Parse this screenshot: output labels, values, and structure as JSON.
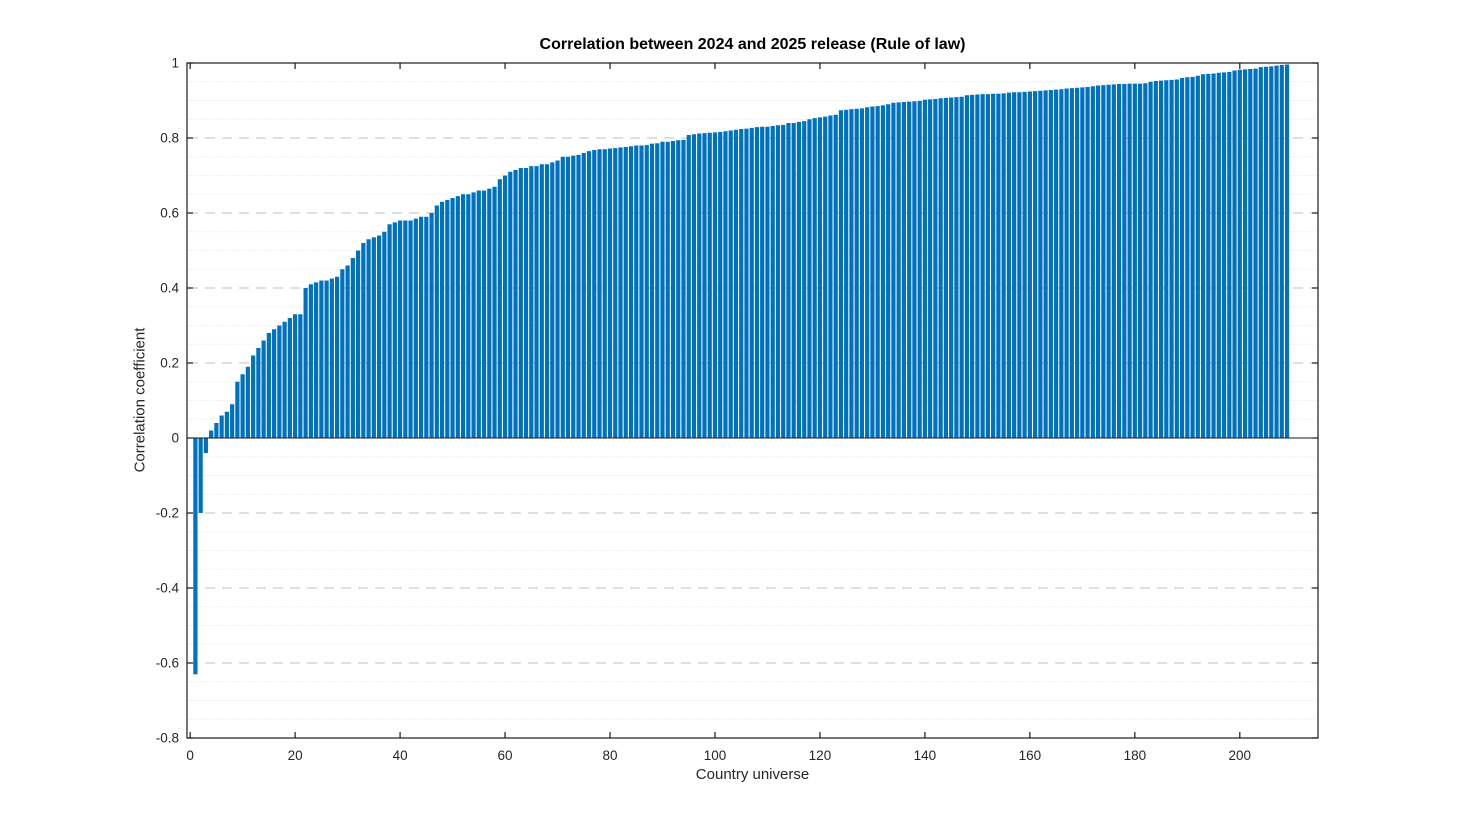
{
  "chart_data": {
    "type": "bar",
    "title": "Correlation between 2024 and 2025 release (Rule of law)",
    "xlabel": "Country universe",
    "ylabel": "Correlation coefficient",
    "x_start": 1,
    "values": [
      -0.63,
      -0.2,
      -0.04,
      0.02,
      0.04,
      0.06,
      0.07,
      0.09,
      0.15,
      0.17,
      0.19,
      0.22,
      0.24,
      0.26,
      0.28,
      0.29,
      0.3,
      0.31,
      0.32,
      0.33,
      0.33,
      0.4,
      0.41,
      0.415,
      0.42,
      0.42,
      0.425,
      0.43,
      0.45,
      0.46,
      0.48,
      0.5,
      0.52,
      0.53,
      0.535,
      0.54,
      0.55,
      0.57,
      0.575,
      0.58,
      0.58,
      0.58,
      0.585,
      0.59,
      0.59,
      0.6,
      0.62,
      0.63,
      0.635,
      0.64,
      0.645,
      0.65,
      0.65,
      0.655,
      0.66,
      0.66,
      0.665,
      0.67,
      0.69,
      0.7,
      0.71,
      0.715,
      0.72,
      0.72,
      0.725,
      0.725,
      0.73,
      0.73,
      0.735,
      0.74,
      0.75,
      0.75,
      0.753,
      0.755,
      0.76,
      0.765,
      0.768,
      0.77,
      0.77,
      0.772,
      0.773,
      0.775,
      0.776,
      0.778,
      0.78,
      0.78,
      0.781,
      0.785,
      0.786,
      0.79,
      0.79,
      0.792,
      0.794,
      0.795,
      0.808,
      0.81,
      0.812,
      0.813,
      0.814,
      0.815,
      0.816,
      0.818,
      0.82,
      0.822,
      0.824,
      0.825,
      0.827,
      0.829,
      0.83,
      0.83,
      0.832,
      0.834,
      0.835,
      0.84,
      0.84,
      0.843,
      0.845,
      0.85,
      0.853,
      0.855,
      0.857,
      0.86,
      0.862,
      0.874,
      0.875,
      0.877,
      0.878,
      0.879,
      0.882,
      0.884,
      0.885,
      0.887,
      0.89,
      0.894,
      0.895,
      0.896,
      0.897,
      0.898,
      0.899,
      0.902,
      0.903,
      0.904,
      0.906,
      0.907,
      0.908,
      0.909,
      0.91,
      0.914,
      0.915,
      0.916,
      0.917,
      0.917,
      0.918,
      0.918,
      0.919,
      0.921,
      0.922,
      0.922,
      0.923,
      0.924,
      0.925,
      0.926,
      0.927,
      0.928,
      0.929,
      0.93,
      0.932,
      0.933,
      0.934,
      0.935,
      0.936,
      0.938,
      0.94,
      0.941,
      0.942,
      0.943,
      0.944,
      0.944,
      0.945,
      0.945,
      0.945,
      0.946,
      0.95,
      0.952,
      0.953,
      0.954,
      0.955,
      0.956,
      0.96,
      0.962,
      0.963,
      0.966,
      0.97,
      0.971,
      0.972,
      0.974,
      0.975,
      0.976,
      0.98,
      0.982,
      0.983,
      0.984,
      0.985,
      0.989,
      0.99,
      0.991,
      0.993,
      0.995,
      0.996
    ],
    "xlim": [
      -0.6,
      214.9
    ],
    "ylim": [
      -0.8,
      1
    ],
    "xticks": [
      0,
      20,
      40,
      60,
      80,
      100,
      120,
      140,
      160,
      180,
      200
    ],
    "xtick_labels": [
      "0",
      "20",
      "40",
      "60",
      "80",
      "100",
      "120",
      "140",
      "160",
      "180",
      "200"
    ],
    "yticks": [
      -0.8,
      -0.6,
      -0.4,
      -0.2,
      0,
      0.2,
      0.4,
      0.6,
      0.8,
      1
    ],
    "ytick_labels": [
      "-0.8",
      "-0.6",
      "-0.4",
      "-0.2",
      "0",
      "0.2",
      "0.4",
      "0.6",
      "0.8",
      "1"
    ],
    "minor_grid_step": 0.05,
    "grid": {
      "major_style": "dashed",
      "minor_style": "dotted",
      "orientation": "horizontal",
      "vertical_gridlines": false
    },
    "legend": "none",
    "bar_width_fraction": 0.8,
    "colors": {
      "bar": "#0072BD",
      "axis_box": "#1a1a1a",
      "baseline": "#1a1a1a",
      "grid_major": "#c2c2c2",
      "grid_minor": "#e0e0e0",
      "tick_label": "#262626"
    }
  }
}
